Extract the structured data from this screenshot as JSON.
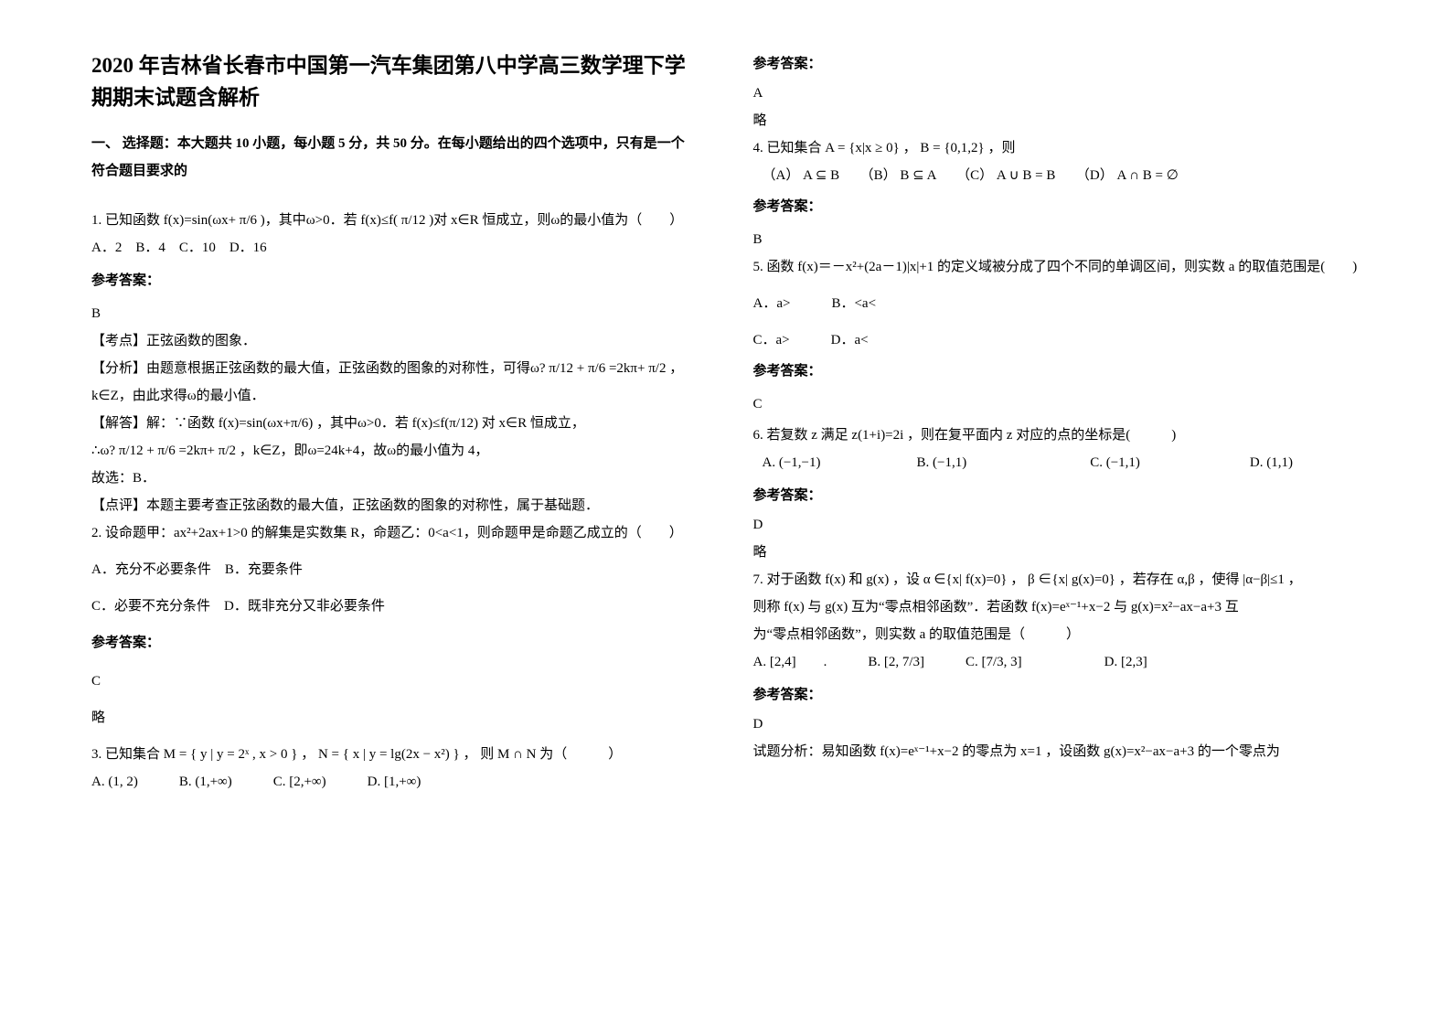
{
  "title": "2020 年吉林省长春市中国第一汽车集团第八中学高三数学理下学期期末试题含解析",
  "section1": "一、 选择题：本大题共 10 小题，每小题 5 分，共 50 分。在每小题给出的四个选项中，只有是一个符合题目要求的",
  "q1_line1": "1. 已知函数 f(x)=sin(ωx+ π/6 )，其中ω>0．若 f(x)≤f( π/12 )对 x∈R 恒成立，则ω的最小值为（　　）",
  "q1_opts": "A．2　B．4　C．10　D．16",
  "ans_label": "参考答案：",
  "q1_ans": "B",
  "q1_kd": "【考点】正弦函数的图象．",
  "q1_fx": "【分析】由题意根据正弦函数的最大值，正弦函数的图象的对称性，可得ω? π/12 + π/6 =2kπ+ π/2 ，k∈Z，由此求得ω的最小值．",
  "q1_jd1": "【解答】解：∵函数 f(x)=sin(ωx+π/6) ，其中ω>0．若 f(x)≤f(π/12) 对 x∈R 恒成立，",
  "q1_jd2": "∴ω? π/12 + π/6 =2kπ+ π/2 ，k∈Z，即ω=24k+4，故ω的最小值为 4，",
  "q1_jd3": "故选：B．",
  "q1_dp": "【点评】本题主要考查正弦函数的最大值，正弦函数的图象的对称性，属于基础题．",
  "q2_line": "2. 设命题甲：ax²+2ax+1>0 的解集是实数集 R，命题乙：0<a<1，则命题甲是命题乙成立的（　　）",
  "q2_a": "A．充分不必要条件　B．充要条件",
  "q2_c": "C．必要不充分条件　D．既非充分又非必要条件",
  "q2_ans": "C",
  "q2_note": "略",
  "q3_line": "3. 已知集合 M = { y | y = 2ˣ , x > 0 } ，  N = { x | y = lg(2x − x²) } ， 则 M ∩ N 为（　　　）",
  "q3_opts": "A. (1, 2)　　　B. (1,+∞)　　　C. [2,+∞)　　　D. [1,+∞)",
  "q3_ans": "A",
  "q3_note": "略",
  "q4_line": "4. 已知集合 A = {x|x ≥ 0} ， B = {0,1,2} ，则",
  "q4_opts": "（A） A ⊆ B　　（B） B ⊆ A　　（C） A ∪ B = B　　（D） A ∩ B = ∅",
  "q4_ans": "B",
  "q5_line": "5. 函数 f(x)＝－x²+(2a－1)|x|+1 的定义域被分成了四个不同的单调区间，则实数 a 的取值范围是(　　)",
  "q5_a": "A．a>　　　B．<a<",
  "q5_c": "C．a>　　　D．a<",
  "q5_ans": "C",
  "q6_line": "6. 若复数 z 满足 z(1+i)=2i ，则在复平面内 z 对应的点的坐标是(　　　)",
  "q6_opts": "A. (−1,−1)　　　　　　　B. (−1,1)　　　　　　　　　C. (−1,1)　　　　　　　　D. (1,1)",
  "q6_ans": "D",
  "q6_note": "略",
  "q7_l1": "7. 对于函数 f(x) 和 g(x) ，设 α ∈{x| f(x)=0} ， β ∈{x| g(x)=0} ，若存在 α,β ，使得 |α−β|≤1 ，",
  "q7_l2": "则称 f(x) 与 g(x) 互为“零点相邻函数”．若函数 f(x)=eˣ⁻¹+x−2 与 g(x)=x²−ax−a+3 互",
  "q7_l3": "为“零点相邻函数”，则实数 a 的取值范围是（　　　）",
  "q7_opts": "A. [2,4]　　.　　　B. [2, 7/3]　　　C. [7/3, 3]　　　　　　D. [2,3]",
  "q7_ans": "D",
  "q7_fx": "试题分析：易知函数 f(x)=eˣ⁻¹+x−2 的零点为 x=1 ，设函数 g(x)=x²−ax−a+3 的一个零点为"
}
